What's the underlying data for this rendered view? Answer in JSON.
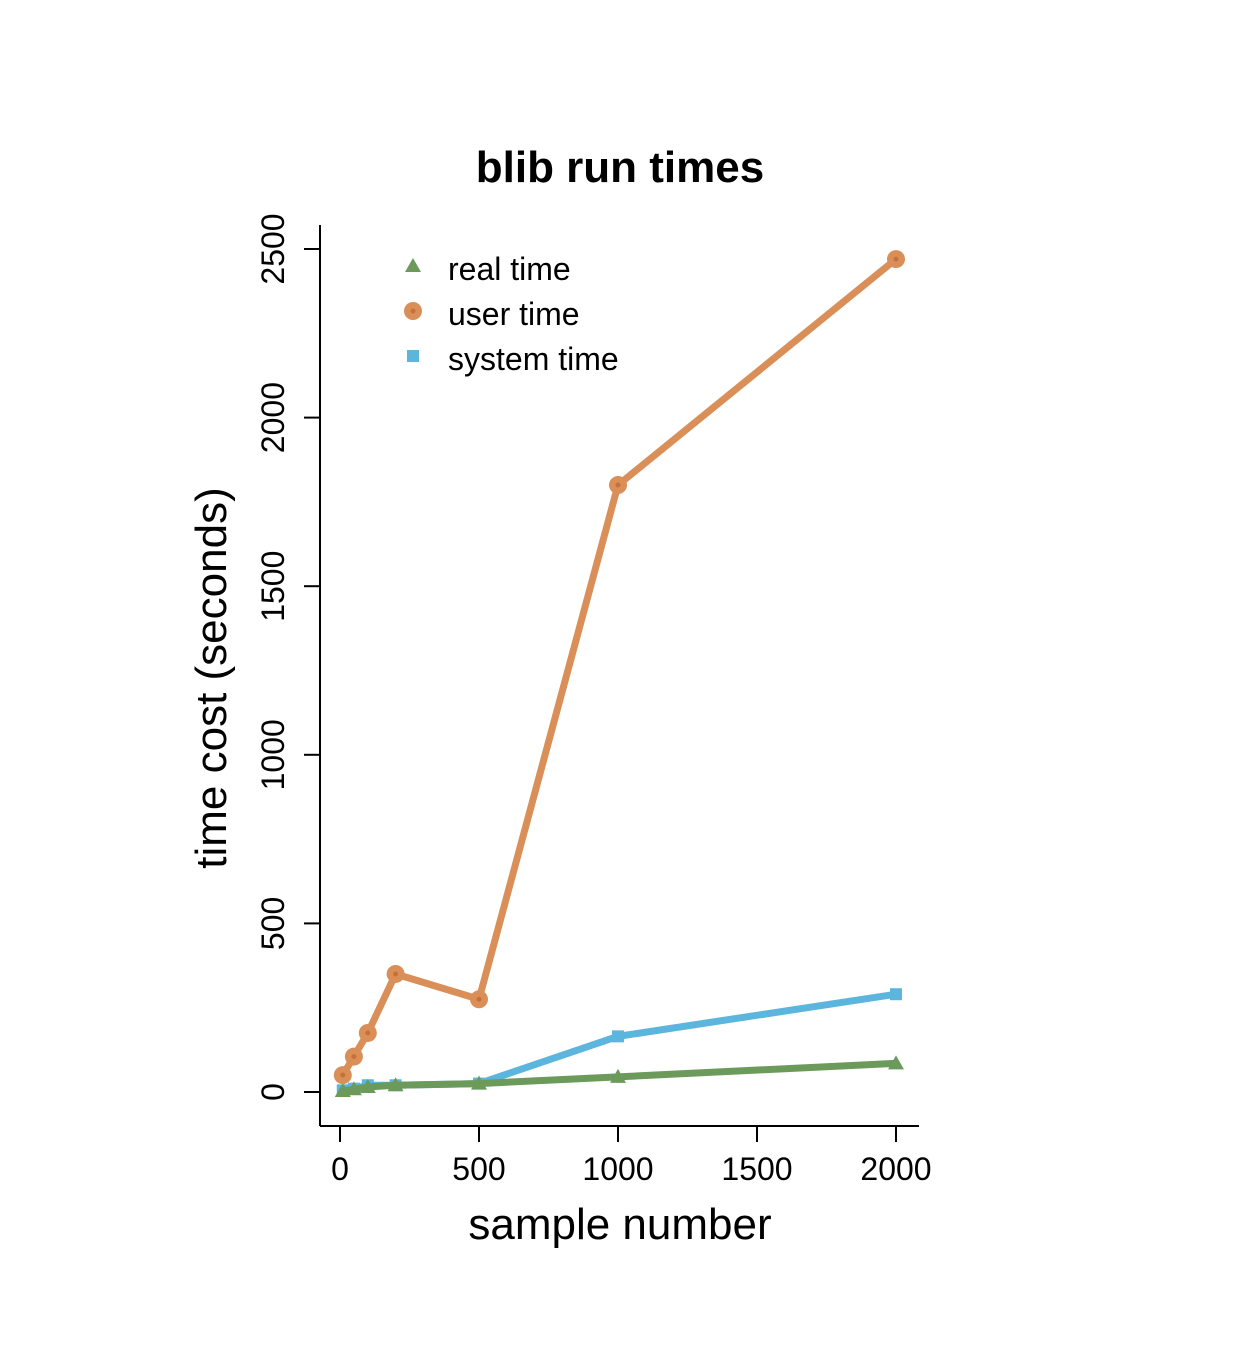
{
  "chart_data": {
    "type": "line",
    "title": "blib run times",
    "xlabel": "sample number",
    "ylabel": "time cost (seconds)",
    "xlim": [
      0,
      2000
    ],
    "ylim": [
      0,
      2500
    ],
    "xticks": [
      "0",
      "500",
      "1000",
      "1500",
      "2000"
    ],
    "yticks": [
      "0",
      "500",
      "1000",
      "1500",
      "2000",
      "2500"
    ],
    "x": [
      10,
      50,
      100,
      200,
      500,
      1000,
      2000
    ],
    "grid": false,
    "legend_position": "top-left",
    "series": [
      {
        "name": "real time",
        "marker": "triangle",
        "color": "#6b9a5b",
        "values": [
          3,
          8,
          15,
          20,
          25,
          45,
          85
        ]
      },
      {
        "name": "user time",
        "marker": "circle",
        "color": "#d98f57",
        "values": [
          50,
          105,
          175,
          350,
          275,
          1800,
          2470
        ]
      },
      {
        "name": "system time",
        "marker": "square",
        "color": "#5bb5dc",
        "values": [
          5,
          10,
          20,
          20,
          25,
          165,
          290
        ]
      }
    ]
  }
}
